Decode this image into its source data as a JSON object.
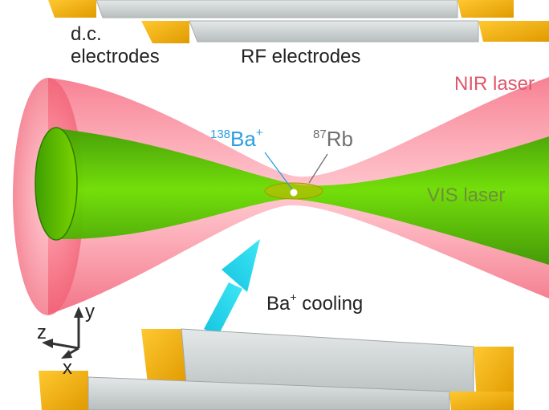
{
  "labels": {
    "dc_electrodes_line1": "d.c.",
    "dc_electrodes_line2": "electrodes",
    "rf_electrodes": "RF electrodes",
    "nir_laser": "NIR laser",
    "vis_laser": "VIS laser",
    "ba_ion_mass": "138",
    "ba_ion_element": "Ba",
    "ba_ion_charge": "+",
    "rb_mass": "87",
    "rb_element": "Rb",
    "cooling_element": "Ba",
    "cooling_charge": "+",
    "cooling_text": " cooling",
    "axis_x": "x",
    "axis_y": "y",
    "axis_z": "z"
  },
  "colors": {
    "nir_beam": "#f06478",
    "vis_beam": "#5fd400",
    "electrode_gold": "#f5b400",
    "electrode_gray": "#d4d8d8",
    "ba_label": "#2a9fe0",
    "rb_label": "#707070",
    "nir_label": "#e0566a",
    "vis_label": "#6f8f3a",
    "cooling_arrow": "#1fd0e8",
    "atom_cloud": "#b8a800"
  }
}
